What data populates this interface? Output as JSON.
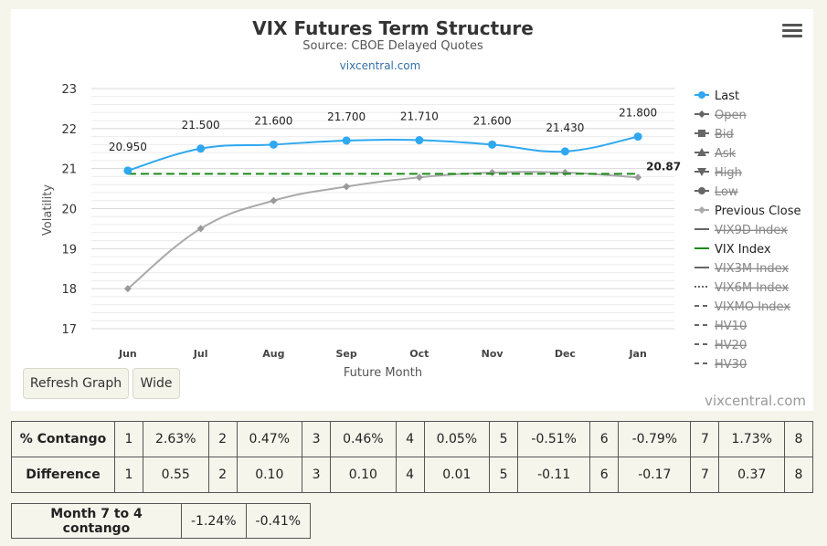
{
  "chart_data": {
    "type": "line",
    "title": "VIX Futures Term Structure",
    "subtitle": "Source: CBOE Delayed Quotes",
    "link": "vixcentral.com",
    "xlabel": "Future Month",
    "ylabel": "Volatility",
    "categories": [
      "Jun",
      "Jul",
      "Aug",
      "Sep",
      "Oct",
      "Nov",
      "Dec",
      "Jan"
    ],
    "ylim": [
      17,
      23
    ],
    "yticks": [
      17,
      18,
      19,
      20,
      21,
      22,
      23
    ],
    "grid": true,
    "legend_position": "right",
    "series": [
      {
        "name": "Last",
        "values": [
          20.95,
          21.5,
          21.6,
          21.7,
          21.71,
          21.6,
          21.43,
          21.8
        ],
        "labels": [
          "20.950",
          "21.500",
          "21.600",
          "21.700",
          "21.710",
          "21.600",
          "21.430",
          "21.800"
        ],
        "color": "#2fa8f0"
      },
      {
        "name": "Previous Close",
        "values": [
          18.0,
          19.5,
          20.2,
          20.55,
          20.78,
          20.9,
          20.9,
          20.78
        ],
        "color": "#aaaaaa"
      },
      {
        "name": "VIX Index",
        "value": 20.87,
        "label": "20.87",
        "color": "#1a8a1a"
      }
    ],
    "legend": [
      {
        "name": "Last",
        "hidden": false,
        "symbol": "circle",
        "line": "solid",
        "color": "#2fa8f0"
      },
      {
        "name": "Open",
        "hidden": true,
        "symbol": "diamond",
        "line": "solid",
        "color": "#666666"
      },
      {
        "name": "Bid",
        "hidden": true,
        "symbol": "square",
        "line": "solid",
        "color": "#666666"
      },
      {
        "name": "Ask",
        "hidden": true,
        "symbol": "triangle",
        "line": "solid",
        "color": "#666666"
      },
      {
        "name": "High",
        "hidden": true,
        "symbol": "triangle-down",
        "line": "solid",
        "color": "#666666"
      },
      {
        "name": "Low",
        "hidden": true,
        "symbol": "circle",
        "line": "solid",
        "color": "#666666"
      },
      {
        "name": "Previous Close",
        "hidden": false,
        "symbol": "diamond",
        "line": "solid",
        "color": "#aaaaaa"
      },
      {
        "name": "VIX9D Index",
        "hidden": true,
        "symbol": "none",
        "line": "solid",
        "color": "#666666"
      },
      {
        "name": "VIX Index",
        "hidden": false,
        "symbol": "none",
        "line": "solid",
        "color": "#1a8a1a"
      },
      {
        "name": "VIX3M Index",
        "hidden": true,
        "symbol": "none",
        "line": "solid",
        "color": "#666666"
      },
      {
        "name": "VIX6M Index",
        "hidden": true,
        "symbol": "none",
        "line": "dotted",
        "color": "#666666"
      },
      {
        "name": "VIXMO Index",
        "hidden": true,
        "symbol": "none",
        "line": "dashed",
        "color": "#666666"
      },
      {
        "name": "HV10",
        "hidden": true,
        "symbol": "none",
        "line": "dashed",
        "color": "#666666"
      },
      {
        "name": "HV20",
        "hidden": true,
        "symbol": "none",
        "line": "dashed",
        "color": "#666666"
      },
      {
        "name": "HV30",
        "hidden": true,
        "symbol": "none",
        "line": "dashed",
        "color": "#666666"
      }
    ]
  },
  "controls": {
    "refresh_label": "Refresh Graph",
    "wide_label": "Wide",
    "credit": "vixcentral.com"
  },
  "contango_table": {
    "row1_header": "% Contango",
    "row1": [
      {
        "n": "1",
        "v": "2.63%"
      },
      {
        "n": "2",
        "v": "0.47%"
      },
      {
        "n": "3",
        "v": "0.46%"
      },
      {
        "n": "4",
        "v": "0.05%"
      },
      {
        "n": "5",
        "v": "-0.51%"
      },
      {
        "n": "6",
        "v": "-0.79%"
      },
      {
        "n": "7",
        "v": "1.73%"
      },
      {
        "n": "8",
        "v": ""
      }
    ],
    "row2_header": "Difference",
    "row2": [
      {
        "n": "1",
        "v": "0.55"
      },
      {
        "n": "2",
        "v": "0.10"
      },
      {
        "n": "3",
        "v": "0.10"
      },
      {
        "n": "4",
        "v": "0.01"
      },
      {
        "n": "5",
        "v": "-0.11"
      },
      {
        "n": "6",
        "v": "-0.17"
      },
      {
        "n": "7",
        "v": "0.37"
      },
      {
        "n": "8",
        "v": ""
      }
    ]
  },
  "month_table": {
    "header": "Month 7 to 4 contango",
    "values": [
      "-1.24%",
      "-0.41%"
    ]
  }
}
